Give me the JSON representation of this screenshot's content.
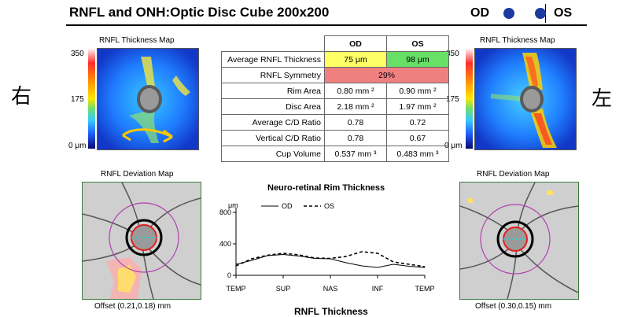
{
  "header": {
    "title": "RNFL and ONH:Optic Disc Cube 200x200",
    "od": "OD",
    "os": "OS"
  },
  "side_labels": {
    "right": "右",
    "left": "左"
  },
  "left_eye": {
    "thickness_map_label": "RNFL Thickness Map",
    "scale_max": "350",
    "scale_mid": "175",
    "scale_min": "0 μm",
    "deviation_map_label": "RNFL Deviation Map",
    "offset": "Offset  (0.21,0.18) mm"
  },
  "right_eye": {
    "thickness_map_label": "RNFL Thickness Map",
    "scale_max": "350",
    "scale_mid": "175",
    "scale_min": "0 μm",
    "deviation_map_label": "RNFL Deviation Map",
    "offset": "Offset  (0.30,0.15) mm"
  },
  "table": {
    "col_od": "OD",
    "col_os": "OS",
    "rows": [
      {
        "label": "Average RNFL Thickness",
        "od": "75 μm",
        "os": "98 μm"
      },
      {
        "label": "RNFL Symmetry",
        "merged": "29%"
      },
      {
        "label": "Rim Area",
        "od": "0.80 mm ²",
        "os": "0.90 mm ²"
      },
      {
        "label": "Disc Area",
        "od": "2.18 mm ²",
        "os": "1.97 mm ²"
      },
      {
        "label": "Average C/D Ratio",
        "od": "0.78",
        "os": "0.72"
      },
      {
        "label": "Vertical C/D Ratio",
        "od": "0.78",
        "os": "0.67"
      },
      {
        "label": "Cup Volume",
        "od": "0.537 mm ³",
        "os": "0.483 mm ³"
      }
    ],
    "colors": {
      "avg_od": "#ffff66",
      "avg_os": "#66e066",
      "symmetry": "#f08080"
    }
  },
  "chart_data": {
    "type": "line",
    "title": "Neuro-retinal Rim Thickness",
    "ylabel": "μm",
    "ylim": [
      0,
      800
    ],
    "yticks": [
      0,
      400,
      800
    ],
    "categories": [
      "TEMP",
      "SUP",
      "NAS",
      "INF",
      "TEMP"
    ],
    "x": [
      0,
      30,
      60,
      90,
      120,
      150,
      180,
      210,
      240,
      270,
      300,
      330,
      360
    ],
    "series": [
      {
        "name": "OD",
        "style": "solid",
        "values": [
          140,
          190,
          250,
          265,
          245,
          215,
          210,
          160,
          120,
          100,
          140,
          115,
          100
        ]
      },
      {
        "name": "OS",
        "style": "dashed",
        "values": [
          120,
          210,
          255,
          280,
          260,
          220,
          215,
          240,
          300,
          280,
          170,
          140,
          110
        ]
      }
    ]
  },
  "footer": {
    "rnfl_thickness": "RNFL Thickness"
  }
}
